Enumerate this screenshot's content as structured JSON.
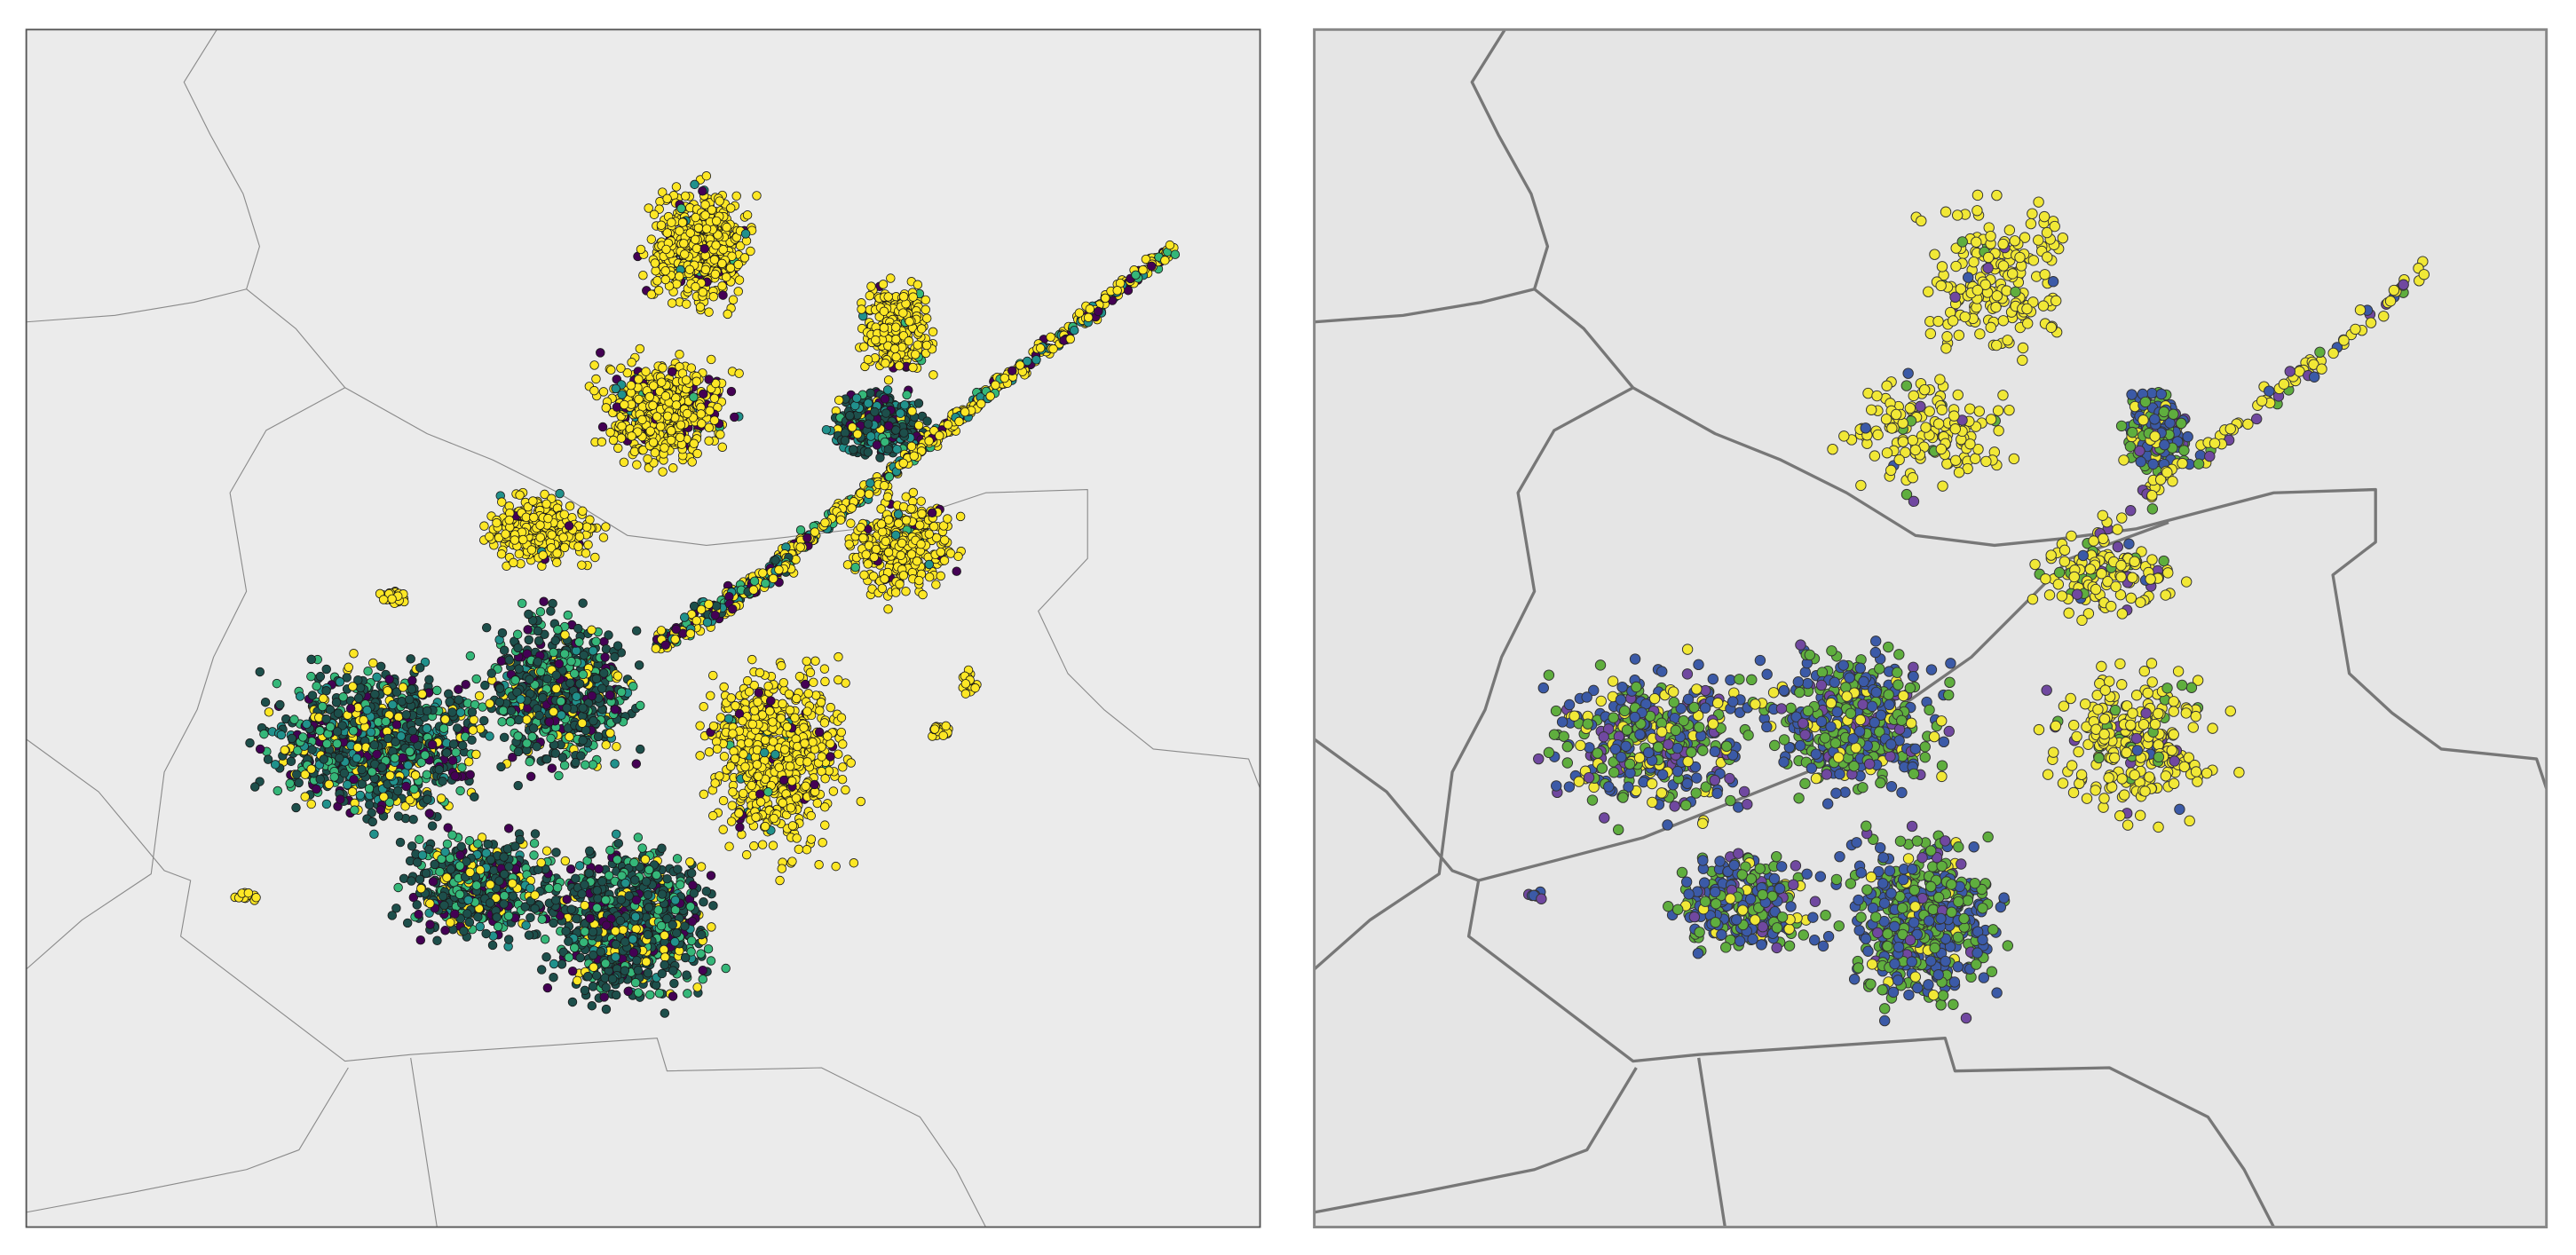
{
  "maps": [
    {
      "background": "#ebebeb",
      "point_colors": [
        "#440154",
        "#21918c",
        "#35b779",
        "#fde725",
        "#1d4f4b"
      ]
    },
    {
      "background": "#e5e5e5",
      "point_colors": [
        "#7048a0",
        "#3b5aa7",
        "#5fae3e",
        "#f1e836"
      ]
    }
  ]
}
